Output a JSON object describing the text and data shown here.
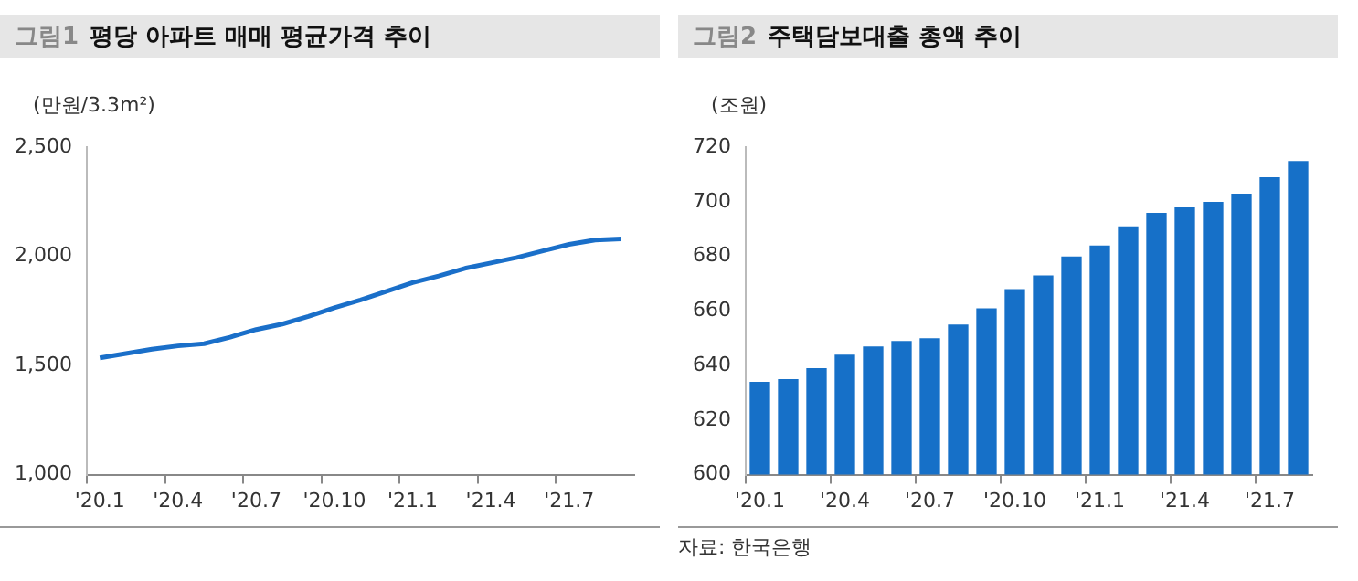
{
  "chart_data": [
    {
      "type": "line",
      "subtitle": "그림1",
      "title": "평당 아파트 매매 평균가격 추이",
      "ylabel": "(만원/3.3m²)",
      "categories": [
        "'20.1",
        null,
        null,
        "'20.4",
        null,
        null,
        "'20.7",
        null,
        null,
        "'20.10",
        null,
        null,
        "'21.1",
        null,
        null,
        "'21.4",
        null,
        null,
        "'21.7",
        null,
        null
      ],
      "series": [
        {
          "color": "#1a6fc9",
          "values": [
            1535,
            1555,
            1575,
            1590,
            1600,
            1630,
            1665,
            1690,
            1725,
            1765,
            1800,
            1840,
            1880,
            1910,
            1945,
            1970,
            1995,
            2025,
            2055,
            2075,
            2080
          ]
        }
      ],
      "ylim": [
        1000,
        2500
      ],
      "yticks": [
        {
          "value": 1000,
          "label": "1,000"
        },
        {
          "value": 1500,
          "label": "1,500"
        },
        {
          "value": 2000,
          "label": "2,000"
        },
        {
          "value": 2500,
          "label": "2,500"
        }
      ]
    },
    {
      "type": "bar",
      "subtitle": "그림2",
      "title": "주택담보대출 총액 추이",
      "ylabel": "(조원)",
      "categories": [
        "'20.1",
        null,
        null,
        "'20.4",
        null,
        null,
        "'20.7",
        null,
        null,
        "'20.10",
        null,
        null,
        "'21.1",
        null,
        null,
        "'21.4",
        null,
        null,
        "'21.7",
        null
      ],
      "series": [
        {
          "color": "#1670c8",
          "values": [
            634,
            635,
            639,
            644,
            647,
            649,
            650,
            655,
            661,
            668,
            673,
            680,
            684,
            691,
            696,
            698,
            700,
            703,
            709,
            715
          ]
        }
      ],
      "ylim": [
        600,
        720
      ],
      "yticks": [
        600,
        620,
        640,
        660,
        680,
        700,
        720
      ],
      "annotations": [
        "자료: 한국은행"
      ]
    }
  ]
}
